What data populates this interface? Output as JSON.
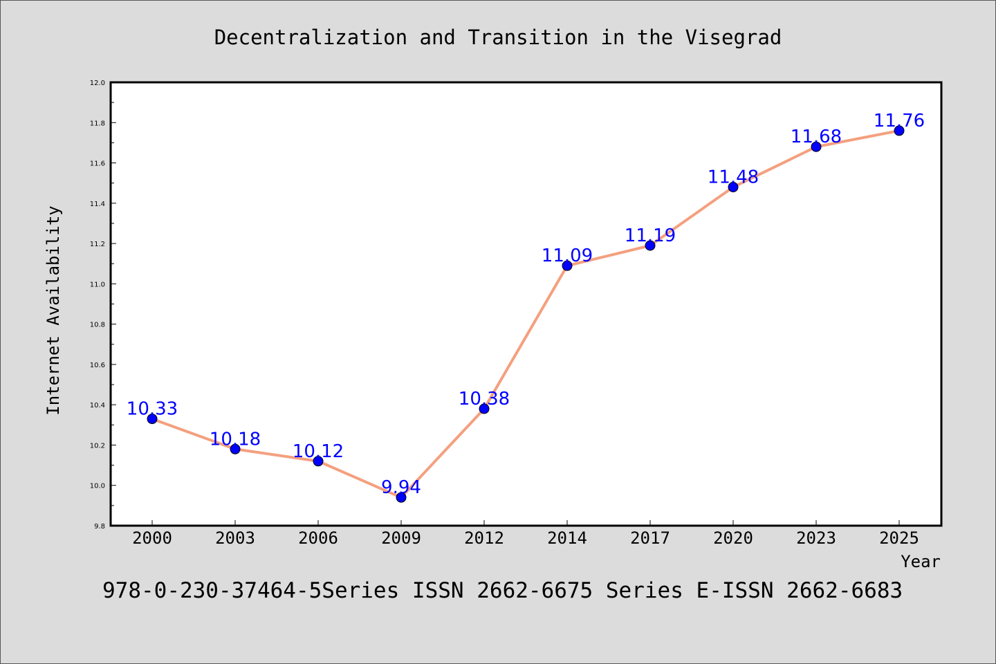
{
  "chart_data": {
    "type": "line",
    "title": "Decentralization and Transition in the Visegrad",
    "xlabel": "Year",
    "ylabel": "Internet Availability",
    "categories": [
      "2000",
      "2003",
      "2006",
      "2009",
      "2012",
      "2014",
      "2017",
      "2020",
      "2023",
      "2025"
    ],
    "series": [
      {
        "values": [
          10.33,
          10.18,
          10.12,
          9.94,
          10.38,
          11.09,
          11.19,
          11.48,
          11.68,
          11.76
        ],
        "data_labels": [
          "10.33",
          "10.18",
          "10.12",
          "9.94",
          "10.38",
          "11.09",
          "11.19",
          "11.48",
          "11.68",
          "11.76"
        ]
      }
    ],
    "ylim": [
      9.8,
      12.0
    ],
    "yticks": [
      "9.8",
      "10.0",
      "10.2",
      "10.4",
      "10.6",
      "10.8",
      "11.0",
      "11.2",
      "11.4",
      "11.6",
      "11.8",
      "12.0"
    ],
    "grid": false,
    "line_color": "#f4a07f",
    "marker_color": "#0000ff",
    "label_color": "#0000ff",
    "background": "#dcdcdc",
    "plot_background": "#ffffff"
  },
  "footer": "978-0-230-37464-5Series ISSN 2662-6675 Series E-ISSN 2662-6683"
}
